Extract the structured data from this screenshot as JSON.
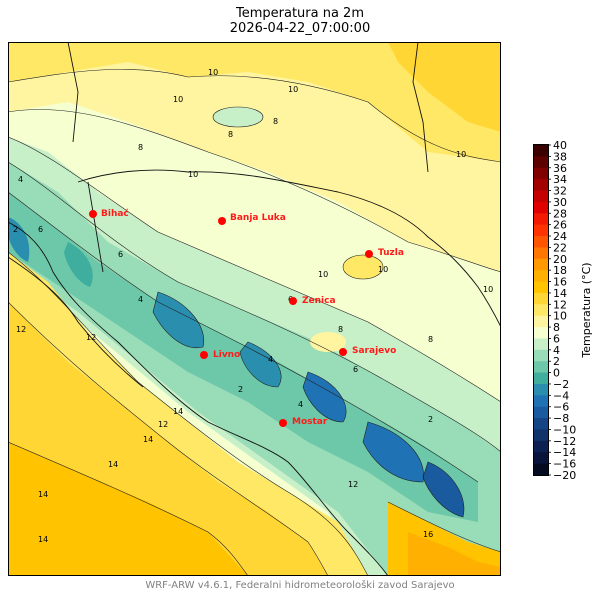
{
  "title": {
    "line1": "Temperatura na 2m",
    "line2": "2026-04-22_07:00:00"
  },
  "footer": "WRF-ARW v4.6.1, Federalni hidrometeorološki zavod Sarajevo",
  "colorbar": {
    "label": "Temperatura (°C)",
    "ticks": [
      "40",
      "38",
      "36",
      "34",
      "32",
      "30",
      "28",
      "26",
      "24",
      "22",
      "20",
      "18",
      "16",
      "14",
      "12",
      "10",
      "8",
      "6",
      "4",
      "2",
      "0",
      "−2",
      "−4",
      "−6",
      "−8",
      "−10",
      "−12",
      "−14",
      "−16",
      "−20"
    ],
    "colors": [
      "#3a0000",
      "#5c0000",
      "#800000",
      "#a30000",
      "#c40000",
      "#e00000",
      "#f21a00",
      "#ff3300",
      "#ff5500",
      "#ff7700",
      "#ff9900",
      "#ffb000",
      "#ffc300",
      "#ffd633",
      "#ffe866",
      "#fff5a0",
      "#f5ffd0",
      "#c8f0c8",
      "#99dcb8",
      "#6cc8a8",
      "#3fae9e",
      "#2a8fae",
      "#1f73b4",
      "#1a5a9e",
      "#154585",
      "#11326b",
      "#0c2152",
      "#08143a",
      "#040a20"
    ]
  },
  "cities": [
    {
      "name": "Bihać"
    },
    {
      "name": "Banja Luka"
    },
    {
      "name": "Tuzla"
    },
    {
      "name": "Zenica"
    },
    {
      "name": "Sarajevo"
    },
    {
      "name": "Livno"
    },
    {
      "name": "Mostar"
    }
  ],
  "contour_labels": [
    "10",
    "10",
    "10",
    "8",
    "8",
    "8",
    "6",
    "6",
    "6",
    "4",
    "4",
    "4",
    "2",
    "2",
    "12",
    "12",
    "12",
    "14",
    "14",
    "14",
    "14",
    "14",
    "10",
    "10",
    "8",
    "8",
    "6",
    "4",
    "2",
    "10",
    "10",
    "16",
    "10",
    "12"
  ],
  "colors": {
    "city_marker": "#ff0000",
    "city_label": "#ff1a1a",
    "footer": "#808080"
  }
}
